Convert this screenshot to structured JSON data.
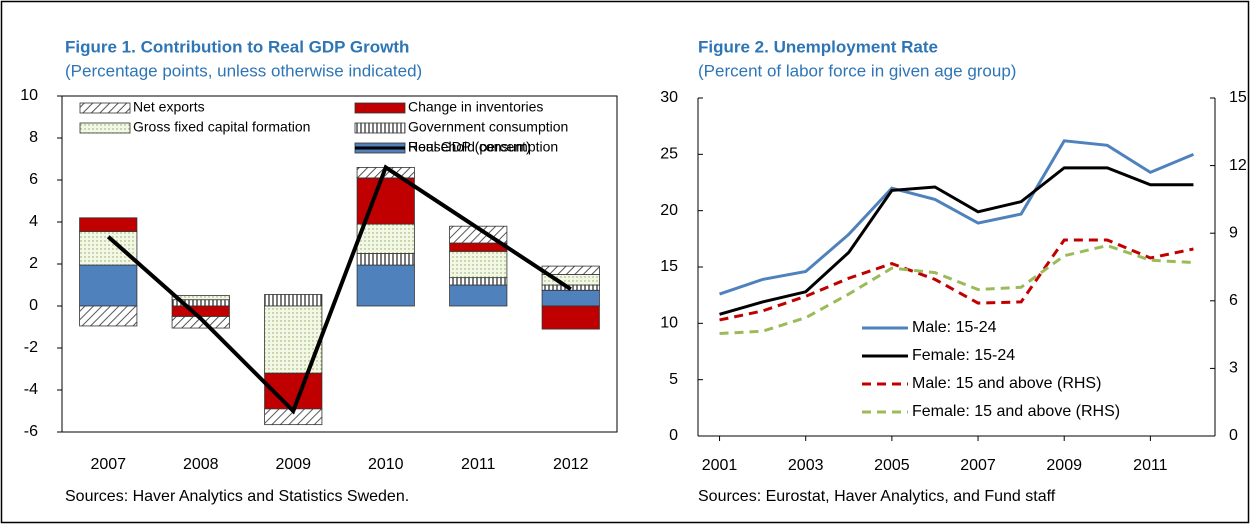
{
  "chart_data": [
    {
      "type": "bar",
      "stacked": true,
      "title": "Figure 1. Contribution to Real GDP Growth",
      "subtitle": "(Percentage points, unless otherwise indicated)",
      "source": "Sources: Haver Analytics and Statistics Sweden.",
      "categories": [
        "2007",
        "2008",
        "2009",
        "2010",
        "2011",
        "2012"
      ],
      "series": [
        {
          "name": "Household consumption",
          "color": "#4f81bd",
          "pattern": "solid",
          "values": [
            1.95,
            0,
            0,
            1.95,
            1.0,
            0.75
          ]
        },
        {
          "name": "Government consumption",
          "color": "#000000",
          "pattern": "vertical",
          "values": [
            0,
            0.3,
            0.55,
            0.55,
            0.35,
            0.25
          ]
        },
        {
          "name": "Gross fixed capital formation",
          "color": "#d7e4bd",
          "pattern": "dotted",
          "values": [
            1.6,
            0.2,
            -3.2,
            1.4,
            1.25,
            0.5
          ]
        },
        {
          "name": "Change in inventories",
          "color": "#c00000",
          "pattern": "solid",
          "values": [
            0.65,
            -0.5,
            -1.7,
            2.2,
            0.4,
            -1.1
          ]
        },
        {
          "name": "Net exports",
          "color": "#000000",
          "pattern": "diagonal",
          "values": [
            -0.95,
            -0.55,
            -0.75,
            0.5,
            0.8,
            0.4
          ]
        }
      ],
      "line": {
        "name": "Real GDP (percent)",
        "color": "#000000",
        "values": [
          3.3,
          -0.6,
          -5.0,
          6.6,
          3.7,
          0.8
        ]
      },
      "ylim": [
        -6,
        10
      ],
      "yticks": [
        -6,
        -4,
        -2,
        0,
        2,
        4,
        6,
        8,
        10
      ]
    },
    {
      "type": "line",
      "title": "Figure 2. Unemployment Rate",
      "subtitle": "(Percent of labor force in given age group)",
      "source": "Sources: Eurostat, Haver Analytics, and Fund staff",
      "x": [
        2001,
        2002,
        2003,
        2004,
        2005,
        2006,
        2007,
        2008,
        2009,
        2010,
        2011,
        2012
      ],
      "series": [
        {
          "name": "Male: 15-24",
          "color": "#4f81bd",
          "dash": false,
          "values": [
            12.6,
            13.9,
            14.6,
            17.9,
            22.0,
            21.0,
            18.9,
            19.7,
            26.2,
            25.8,
            23.4,
            25.0
          ]
        },
        {
          "name": "Female: 15-24",
          "color": "#000000",
          "dash": false,
          "values": [
            10.8,
            11.9,
            12.8,
            16.3,
            21.8,
            22.1,
            19.9,
            20.8,
            23.8,
            23.8,
            22.3,
            22.3
          ]
        },
        {
          "name": "Male: 15 and above (RHS)",
          "color": "#c00000",
          "dash": true,
          "axis": "y2",
          "values": [
            5.15,
            5.55,
            6.2,
            7.0,
            7.65,
            6.95,
            5.9,
            5.95,
            8.7,
            8.7,
            7.9,
            8.3
          ]
        },
        {
          "name": "Female: 15 and above (RHS)",
          "color": "#9bbb59",
          "dash": true,
          "axis": "y2",
          "values": [
            4.55,
            4.65,
            5.25,
            6.3,
            7.45,
            7.25,
            6.5,
            6.6,
            8.0,
            8.45,
            7.8,
            7.7
          ]
        }
      ],
      "xlim": [
        2000.5,
        2012.5
      ],
      "xticks": [
        2001,
        2003,
        2005,
        2007,
        2009,
        2011
      ],
      "ylim": [
        0,
        30
      ],
      "yticks": [
        0,
        5,
        10,
        15,
        20,
        25,
        30
      ],
      "y2lim": [
        0,
        15
      ],
      "y2ticks": [
        0,
        3,
        6,
        9,
        12,
        15
      ]
    }
  ]
}
